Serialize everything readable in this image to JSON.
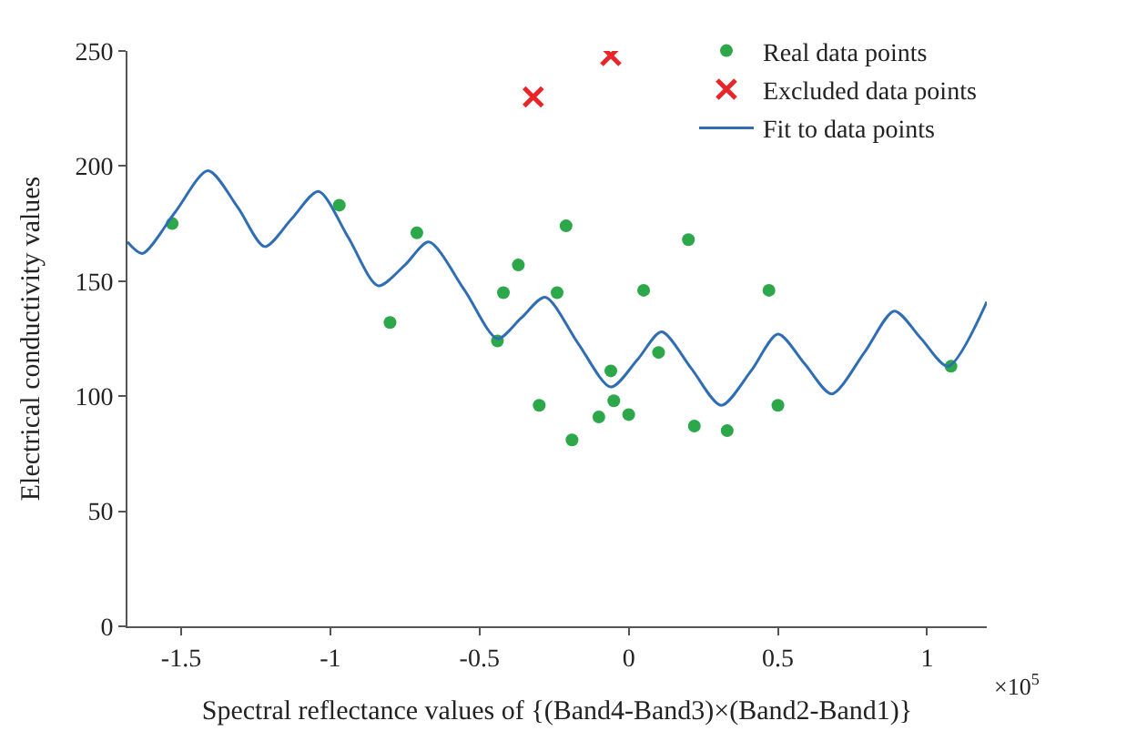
{
  "chart_data": {
    "type": "scatter",
    "xlabel": "Spectral reflectance values of {(Band4-Band3)×(Band2-Band1)}",
    "ylabel": "Electrical conductivity values",
    "annotations": [
      "×10$^{5}$"
    ],
    "xlim": [
      -1.68,
      1.2
    ],
    "xticks": [
      -1.5,
      -1,
      -0.5,
      0,
      0.5,
      1
    ],
    "ylim": [
      0,
      250
    ],
    "yticks": [
      0,
      50,
      100,
      150,
      200,
      250
    ],
    "legend": "top right",
    "series": [
      {
        "name": "Real data points",
        "marker": "circle",
        "color": "#2ca84a",
        "x": [
          -1.53,
          -0.97,
          -0.8,
          -0.71,
          -0.44,
          -0.42,
          -0.37,
          -0.3,
          -0.24,
          -0.21,
          -0.19,
          -0.1,
          -0.06,
          -0.05,
          0.0,
          0.05,
          0.1,
          0.2,
          0.22,
          0.33,
          0.47,
          0.5,
          1.08
        ],
        "values": [
          175,
          183,
          132,
          171,
          124,
          145,
          157,
          96,
          145,
          174,
          81,
          91,
          111,
          98,
          92,
          146,
          119,
          168,
          87,
          85,
          146,
          96,
          113
        ]
      },
      {
        "name": "Excluded data points",
        "marker": "cross",
        "color": "#e8262a",
        "x": [
          -0.32,
          -0.06
        ],
        "values": [
          230,
          248
        ]
      },
      {
        "name": "Fit to data points",
        "type": "line",
        "marker": "none",
        "color": "#2f6db5",
        "x": [
          -1.68,
          -1.63,
          -1.52,
          -1.41,
          -1.31,
          -1.22,
          -1.13,
          -1.04,
          -0.94,
          -0.84,
          -0.75,
          -0.67,
          -0.55,
          -0.44,
          -0.36,
          -0.28,
          -0.17,
          -0.06,
          0.03,
          0.11,
          0.21,
          0.31,
          0.41,
          0.5,
          0.59,
          0.68,
          0.79,
          0.89,
          0.98,
          1.07,
          1.2
        ],
        "values": [
          167,
          162,
          180,
          198,
          182,
          165,
          177,
          189,
          169,
          148,
          157,
          167,
          146,
          125,
          134,
          143,
          123,
          104,
          116,
          128,
          112,
          96,
          111,
          127,
          114,
          101,
          119,
          137,
          125,
          113,
          141
        ]
      }
    ]
  }
}
